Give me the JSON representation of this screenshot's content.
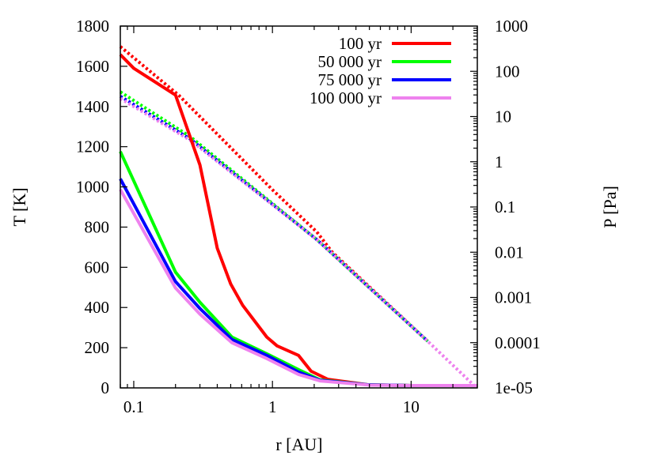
{
  "chart_data": {
    "type": "line",
    "xlabel": "r [AU]",
    "ylabel": "T [K]",
    "y2label": "P [Pa]",
    "xscale": "log",
    "xlim": [
      0.08,
      30
    ],
    "ylim": [
      0,
      1800
    ],
    "y2scale": "log",
    "y2lim": [
      1e-05,
      1000
    ],
    "grid": false,
    "legend_position": "top-right",
    "xticks": [
      {
        "v": 0.1,
        "label": "0.1"
      },
      {
        "v": 1,
        "label": "1"
      },
      {
        "v": 10,
        "label": "10"
      }
    ],
    "yticks": [
      {
        "v": 0,
        "label": "0"
      },
      {
        "v": 200,
        "label": "200"
      },
      {
        "v": 400,
        "label": "400"
      },
      {
        "v": 600,
        "label": "600"
      },
      {
        "v": 800,
        "label": "800"
      },
      {
        "v": 1000,
        "label": "1000"
      },
      {
        "v": 1200,
        "label": "1200"
      },
      {
        "v": 1400,
        "label": "1400"
      },
      {
        "v": 1600,
        "label": "1600"
      },
      {
        "v": 1800,
        "label": "1800"
      }
    ],
    "y2ticks": [
      {
        "v": 1000,
        "label": "1000"
      },
      {
        "v": 100,
        "label": "100"
      },
      {
        "v": 10,
        "label": "10"
      },
      {
        "v": 1,
        "label": "1"
      },
      {
        "v": 0.1,
        "label": "0.1"
      },
      {
        "v": 0.01,
        "label": "0.01"
      },
      {
        "v": 0.001,
        "label": "0.001"
      },
      {
        "v": 0.0001,
        "label": "0.0001"
      },
      {
        "v": 1e-05,
        "label": "1e-05"
      }
    ],
    "series": [
      {
        "name": "100 yr",
        "color": "#ff0000",
        "temperature": [
          [
            0.08,
            1658
          ],
          [
            0.1,
            1590
          ],
          [
            0.2,
            1457
          ],
          [
            0.3,
            1109
          ],
          [
            0.4,
            695
          ],
          [
            0.5,
            517
          ],
          [
            0.61,
            411
          ],
          [
            0.91,
            253
          ],
          [
            1.08,
            209
          ],
          [
            1.54,
            162
          ],
          [
            1.9,
            83
          ],
          [
            2.5,
            43
          ],
          [
            5,
            15
          ],
          [
            10,
            12
          ],
          [
            30,
            12
          ]
        ],
        "pressure": [
          [
            0.08,
            352
          ],
          [
            0.21,
            30
          ],
          [
            1,
            0.24
          ],
          [
            2.09,
            0.028
          ],
          [
            2.7,
            0.01
          ],
          [
            13.2,
            0.000107
          ]
        ]
      },
      {
        "name": "50 000 yr",
        "color": "#00ff00",
        "temperature": [
          [
            0.08,
            1176
          ],
          [
            0.2,
            576
          ],
          [
            0.3,
            426
          ],
          [
            0.51,
            253
          ],
          [
            0.91,
            170
          ],
          [
            1.54,
            91
          ],
          [
            2.2,
            40
          ],
          [
            5,
            15
          ],
          [
            10,
            12
          ],
          [
            30,
            12
          ]
        ],
        "pressure": [
          [
            0.08,
            35
          ],
          [
            0.255,
            3.6
          ],
          [
            2.09,
            0.019
          ],
          [
            13.2,
            0.000107
          ]
        ]
      },
      {
        "name": "75 000 yr",
        "color": "#0000ff",
        "temperature": [
          [
            0.08,
            1040
          ],
          [
            0.2,
            529
          ],
          [
            0.3,
            395
          ],
          [
            0.51,
            241
          ],
          [
            0.91,
            162
          ],
          [
            1.54,
            79
          ],
          [
            2.2,
            38
          ],
          [
            5,
            15
          ],
          [
            10,
            12
          ],
          [
            30,
            12
          ]
        ],
        "pressure": [
          [
            0.08,
            28
          ],
          [
            0.255,
            3.2
          ],
          [
            2.09,
            0.019
          ],
          [
            13.2,
            0.000107
          ]
        ]
      },
      {
        "name": "100 000 yr",
        "color": "#ee82ee",
        "temperature": [
          [
            0.08,
            987
          ],
          [
            0.2,
            497
          ],
          [
            0.3,
            367
          ],
          [
            0.51,
            225
          ],
          [
            0.91,
            146
          ],
          [
            1.54,
            67
          ],
          [
            2.2,
            35
          ],
          [
            5,
            14
          ],
          [
            10,
            12
          ],
          [
            30,
            12
          ]
        ],
        "pressure": [
          [
            0.08,
            25
          ],
          [
            0.255,
            3.0
          ],
          [
            2.09,
            0.019
          ],
          [
            13.2,
            0.000107
          ],
          [
            29,
            1.07e-05
          ]
        ]
      }
    ]
  }
}
